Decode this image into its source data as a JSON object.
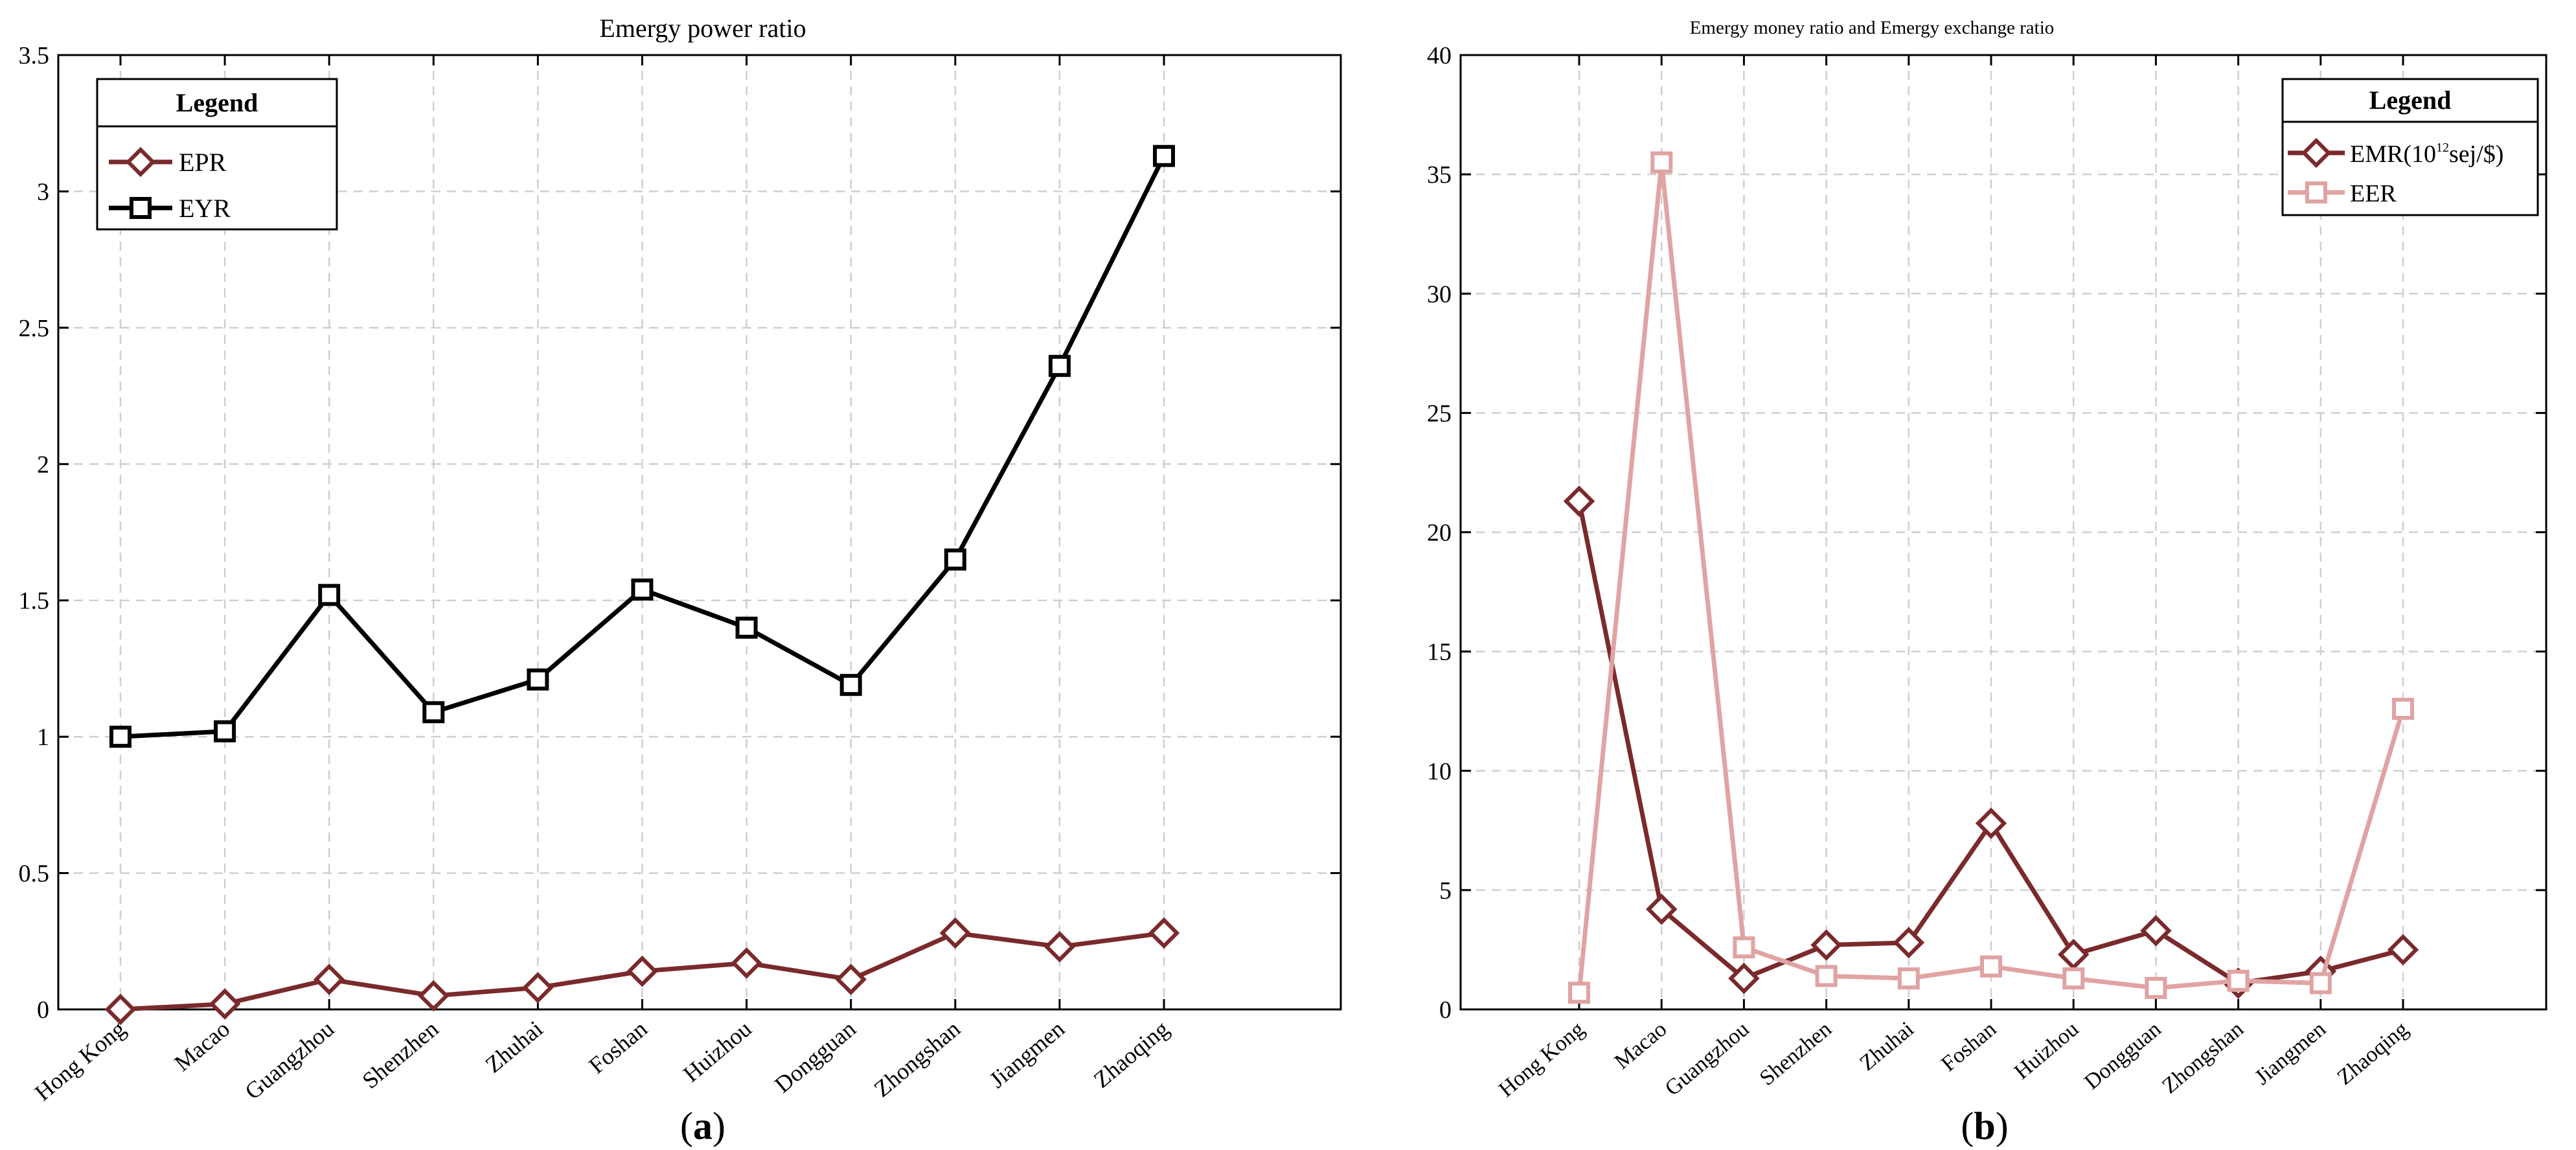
{
  "colors": {
    "epr": "#7a2a2c",
    "eyr": "#000000",
    "emr": "#7a2a2c",
    "eer": "#e0a3a3",
    "grid": "#cfcfcf",
    "axis": "#000000"
  },
  "chart_data": [
    {
      "type": "line",
      "panel_label": "a",
      "title": "Emergy power ratio",
      "xlabel": "",
      "ylabel": "",
      "categories": [
        "Hong Kong",
        "Macao",
        "Guangzhou",
        "Shenzhen",
        "Zhuhai",
        "Foshan",
        "Huizhou",
        "Dongguan",
        "Zhongshan",
        "Jiangmen",
        "Zhaoqing"
      ],
      "ylim": [
        0,
        3.5
      ],
      "yticks": [
        0,
        0.5,
        1,
        1.5,
        2,
        2.5,
        3,
        3.5
      ],
      "ytick_labels": [
        "0",
        "0.5",
        "1",
        "1.5",
        "2",
        "2.5",
        "3",
        "3.5"
      ],
      "grid": true,
      "legend": {
        "title": "Legend",
        "position": "top-left"
      },
      "series": [
        {
          "name": "EPR",
          "marker": "diamond",
          "color_key": "epr",
          "values": [
            0.0,
            0.02,
            0.11,
            0.05,
            0.08,
            0.14,
            0.17,
            0.11,
            0.28,
            0.23,
            0.28
          ]
        },
        {
          "name": "EYR",
          "marker": "square",
          "color_key": "eyr",
          "values": [
            1.0,
            1.02,
            1.52,
            1.09,
            1.21,
            1.54,
            1.4,
            1.19,
            1.65,
            2.36,
            3.13
          ]
        }
      ]
    },
    {
      "type": "line",
      "panel_label": "b",
      "title": "Emergy money ratio and Emergy exchange ratio",
      "xlabel": "",
      "ylabel": "",
      "categories": [
        "Hong Kong",
        "Macao",
        "Guangzhou",
        "Shenzhen",
        "Zhuhai",
        "Foshan",
        "Huizhou",
        "Dongguan",
        "Zhongshan",
        "Jiangmen",
        "Zhaoqing"
      ],
      "ylim": [
        0,
        40
      ],
      "yticks": [
        0,
        5,
        10,
        15,
        20,
        25,
        30,
        35,
        40
      ],
      "ytick_labels": [
        "0",
        "5",
        "10",
        "15",
        "20",
        "25",
        "30",
        "35",
        "40"
      ],
      "grid": true,
      "legend": {
        "title": "Legend",
        "position": "top-right"
      },
      "series": [
        {
          "name": "EMR(10",
          "name_sup": "12",
          "name_suffix": "sej/$)",
          "marker": "diamond",
          "color_key": "emr",
          "values": [
            21.3,
            4.2,
            1.3,
            2.7,
            2.8,
            7.8,
            2.3,
            3.3,
            1.1,
            1.6,
            2.5
          ]
        },
        {
          "name": "EER",
          "marker": "square",
          "color_key": "eer",
          "values": [
            0.7,
            35.5,
            2.6,
            1.4,
            1.3,
            1.8,
            1.3,
            0.9,
            1.2,
            1.1,
            12.6
          ]
        }
      ]
    }
  ]
}
